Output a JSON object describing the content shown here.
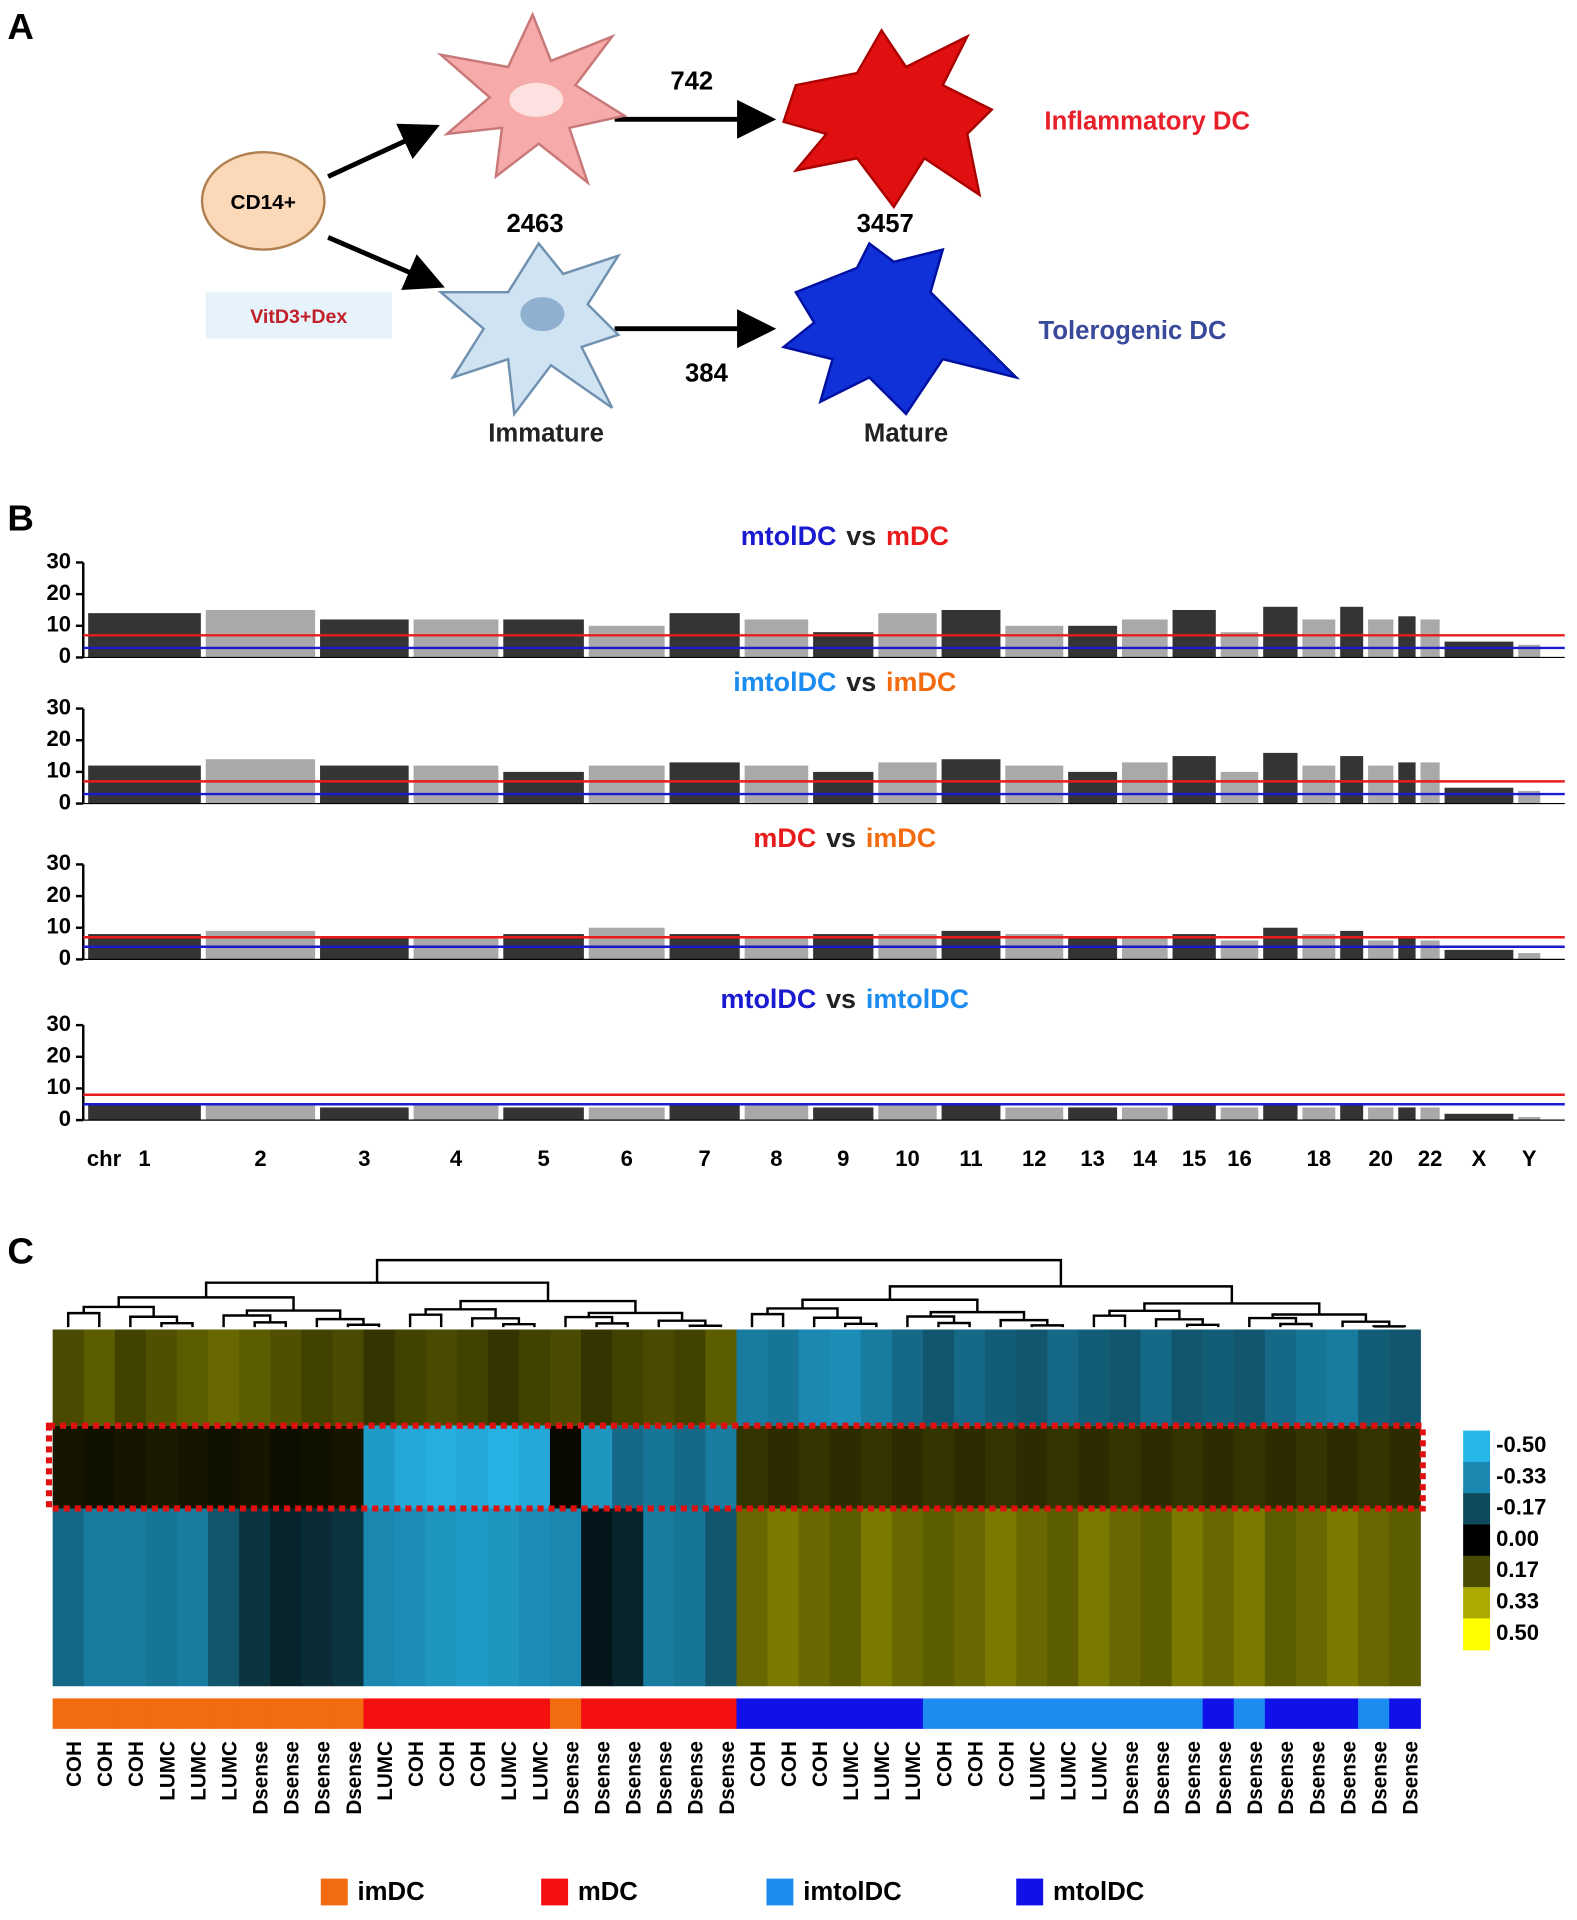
{
  "panel_labels": [
    "A",
    "B",
    "C"
  ],
  "diagram": {
    "source": "CD14+",
    "treatment": "VitD3+Dex",
    "counts": [
      742,
      2463,
      3457,
      384
    ],
    "stages": [
      "Immature",
      "Mature"
    ],
    "outcomes": [
      "Inflammatory DC",
      "Tolerogenic DC"
    ]
  },
  "chart_data": [
    {
      "type": "manhattan",
      "title_parts": [
        {
          "text": "mtolDC",
          "color": "#1a1ad0"
        },
        {
          "text": "vs",
          "color": "#222222"
        },
        {
          "text": "mDC",
          "color": "#e81c1c"
        }
      ],
      "values": [
        14,
        15,
        12,
        12,
        12,
        10,
        14,
        12,
        8,
        14,
        15,
        10,
        10,
        12,
        15,
        8,
        16,
        12,
        16,
        12,
        13,
        12,
        5,
        4
      ],
      "colors": [
        "#111111",
        "#9a9a9a"
      ],
      "thresholds": [
        {
          "value": 7,
          "color": "#e81c1c"
        },
        {
          "value": 3,
          "color": "#1a1ad0"
        }
      ],
      "ylim": [
        0,
        30
      ],
      "yticks": [
        0,
        10,
        20,
        30
      ]
    },
    {
      "type": "manhattan",
      "title_parts": [
        {
          "text": "imtolDC",
          "color": "#1c8cf0"
        },
        {
          "text": "vs",
          "color": "#222222"
        },
        {
          "text": "imDC",
          "color": "#f26b0f"
        }
      ],
      "values": [
        12,
        14,
        12,
        12,
        10,
        12,
        13,
        12,
        10,
        13,
        14,
        12,
        10,
        13,
        15,
        10,
        16,
        12,
        15,
        12,
        13,
        13,
        5,
        4
      ],
      "colors": [
        "#111111",
        "#9a9a9a"
      ],
      "thresholds": [
        {
          "value": 7,
          "color": "#e81c1c"
        },
        {
          "value": 3,
          "color": "#1a1ad0"
        }
      ],
      "ylim": [
        0,
        30
      ],
      "yticks": [
        0,
        10,
        20,
        30
      ]
    },
    {
      "type": "manhattan",
      "title_parts": [
        {
          "text": "mDC",
          "color": "#e81c1c"
        },
        {
          "text": "vs",
          "color": "#222222"
        },
        {
          "text": "imDC",
          "color": "#f26b0f"
        }
      ],
      "values": [
        8,
        9,
        7,
        7,
        8,
        10,
        8,
        7,
        8,
        8,
        9,
        8,
        7,
        7,
        8,
        6,
        10,
        8,
        9,
        6,
        7,
        6,
        3,
        2
      ],
      "colors": [
        "#111111",
        "#9a9a9a"
      ],
      "thresholds": [
        {
          "value": 7,
          "color": "#e81c1c"
        },
        {
          "value": 4,
          "color": "#1a1ad0"
        }
      ],
      "ylim": [
        0,
        30
      ],
      "yticks": [
        0,
        10,
        20,
        30
      ]
    },
    {
      "type": "manhattan",
      "title_parts": [
        {
          "text": "mtolDC",
          "color": "#1a1ad0"
        },
        {
          "text": "vs",
          "color": "#222222"
        },
        {
          "text": "imtolDC",
          "color": "#1c8cf0"
        }
      ],
      "values": [
        5,
        5,
        4,
        5,
        4,
        4,
        5,
        5,
        4,
        5,
        5,
        4,
        4,
        4,
        5,
        4,
        5,
        4,
        5,
        4,
        4,
        4,
        2,
        1
      ],
      "colors": [
        "#111111",
        "#9a9a9a"
      ],
      "thresholds": [
        {
          "value": 8,
          "color": "#e81c1c"
        },
        {
          "value": 5,
          "color": "#1a1ad0"
        }
      ],
      "ylim": [
        0,
        30
      ],
      "yticks": [
        0,
        10,
        20,
        30
      ],
      "xlabel": "chr",
      "categories": [
        "1",
        "2",
        "3",
        "4",
        "5",
        "6",
        "7",
        "8",
        "9",
        "10",
        "11",
        "12",
        "13",
        "14",
        "15",
        "16",
        null,
        "18",
        null,
        "20",
        null,
        "22",
        "X",
        "Y"
      ]
    },
    {
      "type": "heatmap",
      "categories": [
        "COH",
        "COH",
        "COH",
        "LUMC",
        "LUMC",
        "LUMC",
        "Dsense",
        "Dsense",
        "Dsense",
        "Dsense",
        "LUMC",
        "COH",
        "COH",
        "COH",
        "LUMC",
        "LUMC",
        "Dsense",
        "Dsense",
        "Dsense",
        "Dsense",
        "Dsense",
        "Dsense",
        "COH",
        "COH",
        "COH",
        "LUMC",
        "LUMC",
        "LUMC",
        "COH",
        "COH",
        "COH",
        "LUMC",
        "LUMC",
        "LUMC",
        "Dsense",
        "Dsense",
        "Dsense",
        "Dsense",
        "Dsense",
        "Dsense",
        "Dsense",
        "Dsense",
        "Dsense",
        "Dsense"
      ],
      "groups": [
        0,
        0,
        0,
        0,
        0,
        0,
        0,
        0,
        0,
        0,
        1,
        1,
        1,
        1,
        1,
        1,
        0,
        1,
        1,
        1,
        1,
        1,
        3,
        3,
        3,
        3,
        3,
        3,
        2,
        2,
        2,
        2,
        2,
        2,
        2,
        2,
        2,
        3,
        2,
        3,
        3,
        3,
        2,
        3
      ],
      "legend": [
        {
          "name": "imDC",
          "color": "#f26b0f"
        },
        {
          "name": "mDC",
          "color": "#f51010"
        },
        {
          "name": "imtolDC",
          "color": "#1c8cf0"
        },
        {
          "name": "mtolDC",
          "color": "#1010e8"
        }
      ],
      "rows": [
        [
          0.17,
          0.2,
          0.15,
          0.18,
          0.2,
          0.22,
          0.2,
          0.18,
          0.15,
          0.17,
          0.12,
          0.15,
          0.17,
          0.15,
          0.12,
          0.15,
          0.17,
          0.12,
          0.15,
          0.17,
          0.15,
          0.2,
          -0.3,
          -0.28,
          -0.33,
          -0.35,
          -0.3,
          -0.25,
          -0.2,
          -0.25,
          -0.22,
          -0.2,
          -0.25,
          -0.22,
          -0.2,
          -0.25,
          -0.2,
          -0.22,
          -0.2,
          -0.25,
          -0.28,
          -0.3,
          -0.22,
          -0.2
        ],
        [
          0.05,
          0.04,
          0.05,
          0.06,
          0.05,
          0.04,
          0.05,
          0.03,
          0.04,
          0.05,
          -0.4,
          -0.45,
          -0.47,
          -0.45,
          -0.48,
          -0.45,
          0.02,
          -0.38,
          -0.25,
          -0.28,
          -0.25,
          -0.3,
          0.12,
          0.1,
          0.12,
          0.1,
          0.12,
          0.1,
          0.12,
          0.1,
          0.12,
          0.1,
          0.12,
          0.1,
          0.12,
          0.1,
          0.12,
          0.1,
          0.12,
          0.1,
          0.12,
          0.1,
          0.12,
          0.1
        ],
        [
          -0.25,
          -0.3,
          -0.3,
          -0.28,
          -0.3,
          -0.2,
          -0.12,
          -0.08,
          -0.1,
          -0.12,
          -0.33,
          -0.35,
          -0.38,
          -0.4,
          -0.38,
          -0.35,
          -0.33,
          -0.05,
          -0.08,
          -0.3,
          -0.28,
          -0.2,
          0.22,
          0.25,
          0.22,
          0.2,
          0.25,
          0.22,
          0.2,
          0.22,
          0.25,
          0.22,
          0.2,
          0.25,
          0.22,
          0.2,
          0.25,
          0.22,
          0.25,
          0.2,
          0.22,
          0.25,
          0.22,
          0.2
        ]
      ],
      "colorbar": {
        "colors": [
          "#27b6e8",
          "#1a88b0",
          "#0f4a5c",
          "#000000",
          "#4a4a00",
          "#aaaa00",
          "#ffff00"
        ],
        "ticks": [
          {
            "value": -0.5,
            "label": "-0.50"
          },
          {
            "value": -0.33,
            "label": "-0.33"
          },
          {
            "value": -0.17,
            "label": "-0.17"
          },
          {
            "value": 0,
            "label": "0.00"
          },
          {
            "value": 0.17,
            "label": "0.17"
          },
          {
            "value": 0.33,
            "label": "0.33"
          },
          {
            "value": 0.5,
            "label": "0.50"
          }
        ]
      }
    }
  ]
}
